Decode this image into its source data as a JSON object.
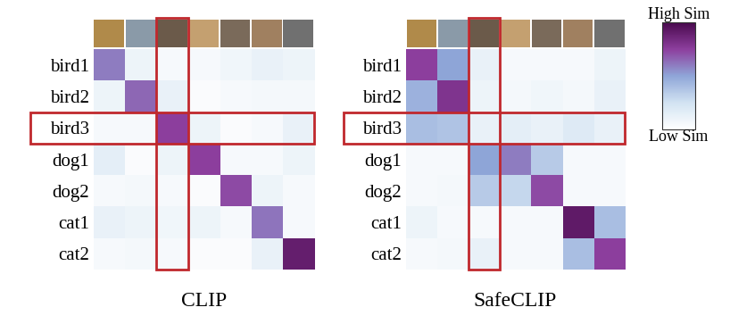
{
  "chart_data": [
    {
      "type": "heatmap",
      "title": "CLIP",
      "y_categories": [
        "bird1",
        "bird2",
        "bird3",
        "dog1",
        "dog2",
        "cat1",
        "cat2"
      ],
      "x_categories": [
        null,
        null,
        null,
        null,
        null,
        null,
        null
      ],
      "cells": [
        [
          0.6,
          0.1,
          0.05,
          0.05,
          0.08,
          0.12,
          0.1
        ],
        [
          0.1,
          0.65,
          0.12,
          0.03,
          0.05,
          0.06,
          0.06
        ],
        [
          0.05,
          0.05,
          0.75,
          0.1,
          0.03,
          0.05,
          0.12
        ],
        [
          0.15,
          0.03,
          0.1,
          0.75,
          0.05,
          0.05,
          0.1
        ],
        [
          0.05,
          0.06,
          0.05,
          0.03,
          0.72,
          0.1,
          0.05
        ],
        [
          0.12,
          0.1,
          0.08,
          0.1,
          0.05,
          0.62,
          0.05
        ],
        [
          0.05,
          0.06,
          0.05,
          0.03,
          0.03,
          0.12,
          0.9
        ]
      ],
      "highlight": {
        "row": 2,
        "column": 2
      },
      "colorbar_range": [
        0,
        1
      ],
      "colorbar_ticks": [
        {
          "value": 1,
          "label": "High Sim"
        },
        {
          "value": 0,
          "label": "Low Sim"
        }
      ]
    },
    {
      "type": "heatmap",
      "title": "SafeCLIP",
      "y_categories": [
        "bird1",
        "bird2",
        "bird3",
        "dog1",
        "dog2",
        "cat1",
        "cat2"
      ],
      "x_categories": [
        null,
        null,
        null,
        null,
        null,
        null,
        null
      ],
      "cells": [
        [
          0.75,
          0.5,
          0.12,
          0.05,
          0.05,
          0.05,
          0.1
        ],
        [
          0.45,
          0.8,
          0.1,
          0.06,
          0.08,
          0.06,
          0.12
        ],
        [
          0.4,
          0.38,
          0.12,
          0.15,
          0.12,
          0.18,
          0.12
        ],
        [
          0.05,
          0.05,
          0.5,
          0.6,
          0.35,
          0.05,
          0.05
        ],
        [
          0.05,
          0.06,
          0.35,
          0.3,
          0.72,
          0.05,
          0.05
        ],
        [
          0.1,
          0.05,
          0.05,
          0.05,
          0.05,
          0.92,
          0.4
        ],
        [
          0.05,
          0.06,
          0.12,
          0.05,
          0.05,
          0.4,
          0.75
        ]
      ],
      "highlight": {
        "row": 2,
        "column": 2
      },
      "colorbar_range": [
        0,
        1
      ],
      "colorbar_ticks": [
        {
          "value": 1,
          "label": "High Sim"
        },
        {
          "value": 0,
          "label": "Low Sim"
        }
      ]
    }
  ]
}
